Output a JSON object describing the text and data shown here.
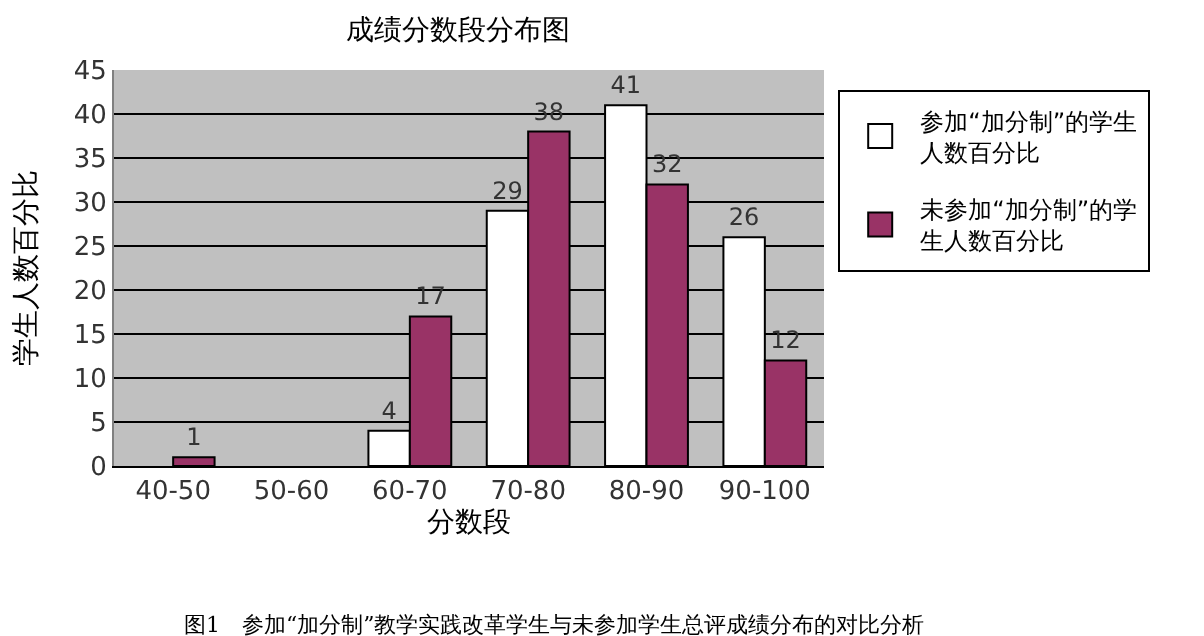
{
  "chart_data": {
    "type": "bar",
    "title": "成绩分数段分布图",
    "xlabel": "分数段",
    "ylabel": "学生人数百分比",
    "categories": [
      "40-50",
      "50-60",
      "60-70",
      "70-80",
      "80-90",
      "90-100"
    ],
    "series": [
      {
        "name": "参加“加分制”的学生人数百分比",
        "color": "#ffffff",
        "values": [
          0,
          0,
          4,
          29,
          41,
          26
        ],
        "value_labels": [
          null,
          null,
          "4",
          "29",
          "41",
          "26"
        ]
      },
      {
        "name": "未参加“加分制”的学生人数百分比",
        "color": "#993366",
        "values": [
          1,
          0,
          17,
          38,
          32,
          12
        ],
        "value_labels": [
          "1",
          null,
          "17",
          "38",
          "32",
          "12"
        ]
      }
    ],
    "ylim": [
      0,
      45
    ],
    "yticks": [
      0,
      5,
      10,
      15,
      20,
      25,
      30,
      35,
      40,
      45
    ],
    "grid": "y",
    "legend": "right",
    "annotations": [
      "图1　参加“加分制”教学实践改革学生与未参加学生总评成绩分布的对比分析"
    ]
  }
}
